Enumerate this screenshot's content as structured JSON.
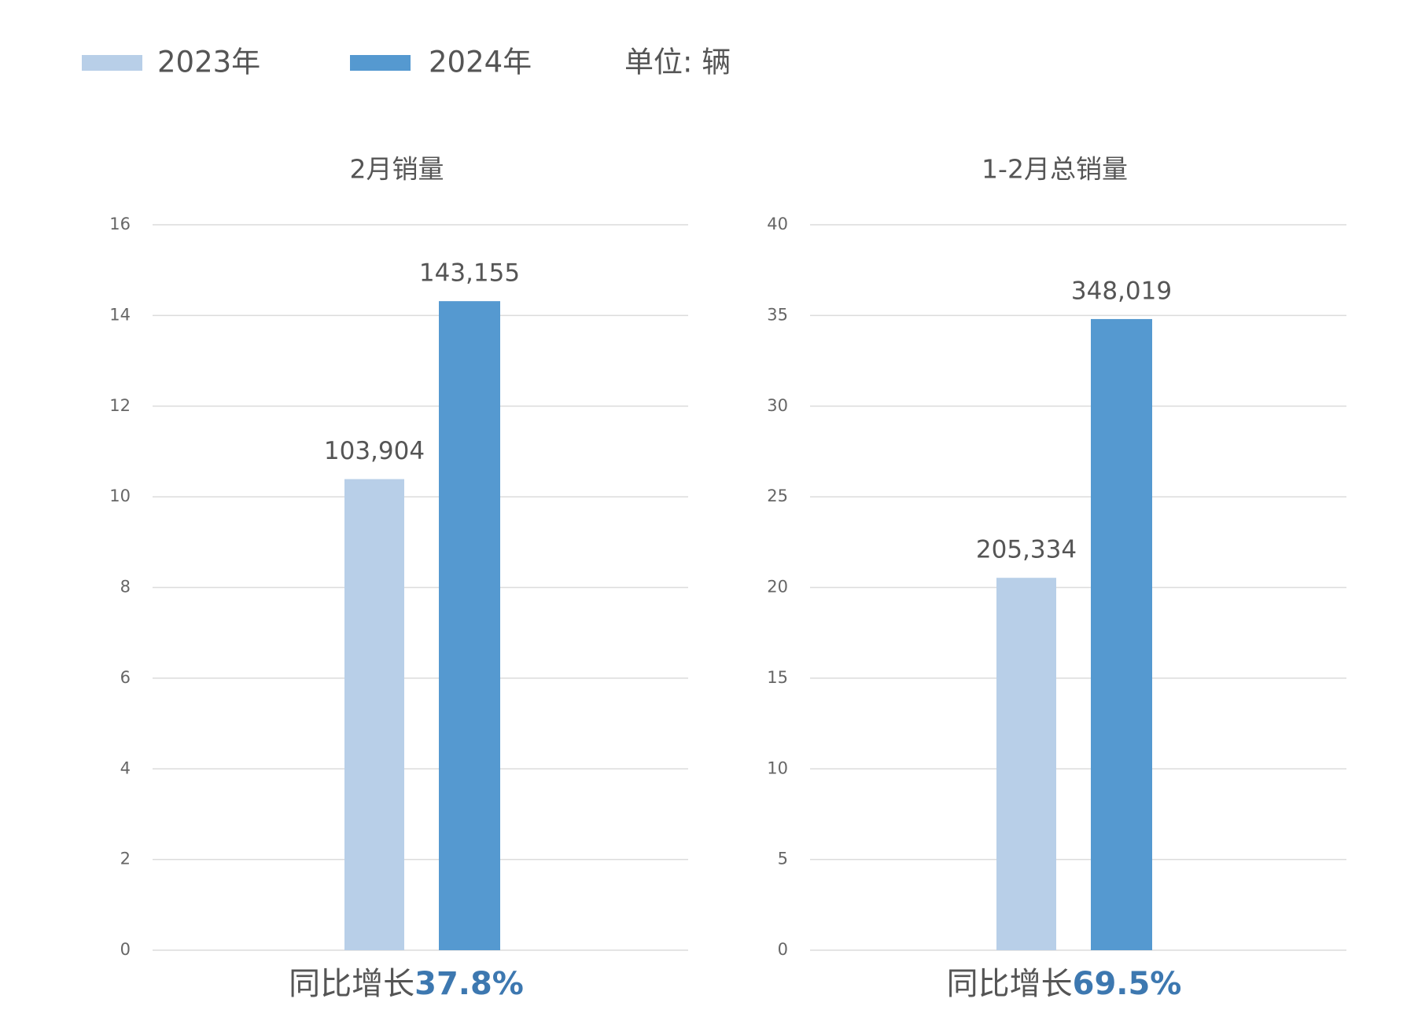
{
  "legend": [
    {
      "name": "2023年",
      "color": "#b8cfe8"
    },
    {
      "name": "2024年",
      "color": "#5599d0"
    }
  ],
  "unit": "单位: 辆",
  "chart_data": [
    {
      "type": "bar",
      "title": "2月销量",
      "values": [
        10.3904,
        14.3155
      ],
      "value_labels": [
        "103,904",
        "143,155"
      ],
      "ylim": [
        0,
        16
      ],
      "yticks": [
        0,
        2,
        4,
        6,
        8,
        10,
        12,
        14,
        16
      ],
      "grid": true,
      "annotation": {
        "text": "同比增长",
        "highlight": "37.8%"
      }
    },
    {
      "type": "bar",
      "title": "1-2月总销量",
      "values": [
        20.5334,
        34.8019
      ],
      "value_labels": [
        "205,334",
        "348,019"
      ],
      "ylim": [
        0,
        40
      ],
      "yticks": [
        0,
        5,
        10,
        15,
        20,
        25,
        30,
        35,
        40
      ],
      "grid": true,
      "annotation": {
        "text": "同比增长",
        "highlight": "69.5%"
      }
    }
  ]
}
